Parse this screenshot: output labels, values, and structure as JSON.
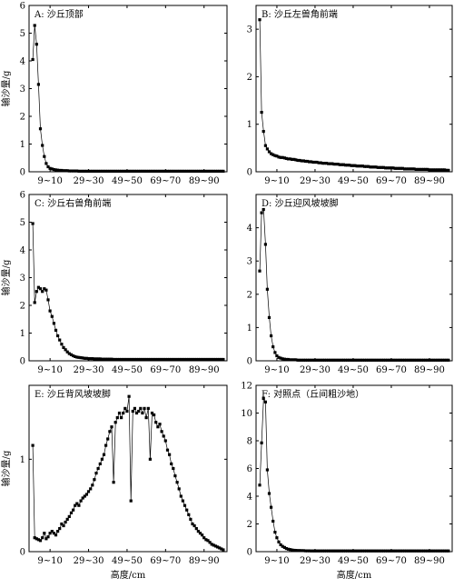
{
  "figure": {
    "ylabel": "输沙量/g",
    "xlabel": "高度/cm",
    "xticks": [
      "9~10",
      "29~30",
      "49~50",
      "69~70",
      "89~90"
    ]
  },
  "chart_data": [
    {
      "type": "line",
      "title": "A: 沙丘顶部",
      "ylim": [
        0,
        6
      ],
      "yticks": [
        0,
        1,
        2,
        3,
        4,
        5,
        6
      ],
      "values": [
        4.05,
        5.28,
        4.6,
        3.15,
        1.55,
        0.95,
        0.55,
        0.3,
        0.18,
        0.12,
        0.1,
        0.08,
        0.07,
        0.06,
        0.05,
        0.05,
        0.04,
        0.04,
        0.04,
        0.03,
        0.03,
        0.03,
        0.03,
        0.03,
        0.02,
        0.02,
        0.02,
        0.02,
        0.02,
        0.02,
        0.02,
        0.02,
        0.02,
        0.02,
        0.02,
        0.02,
        0.02,
        0.02,
        0.02,
        0.02,
        0.02,
        0.02,
        0.02,
        0.02,
        0.02,
        0.02,
        0.02,
        0.02,
        0.02,
        0.02,
        0.02,
        0.02,
        0.02,
        0.02,
        0.02,
        0.02,
        0.02,
        0.02,
        0.02,
        0.02,
        0.02,
        0.02,
        0.02,
        0.02,
        0.02,
        0.02,
        0.02,
        0.02,
        0.02,
        0.02,
        0.02,
        0.02,
        0.02,
        0.02,
        0.02,
        0.02,
        0.02,
        0.02,
        0.02,
        0.02,
        0.02,
        0.02,
        0.02,
        0.02,
        0.02,
        0.02,
        0.02,
        0.02,
        0.02,
        0.02,
        0.02,
        0.02,
        0.02,
        0.02,
        0.02,
        0.02,
        0.02,
        0.02,
        0.02,
        0.02
      ]
    },
    {
      "type": "line",
      "title": "B: 沙丘左兽角前端",
      "ylim": [
        0,
        3.5
      ],
      "yticks": [
        0,
        1,
        2,
        3
      ],
      "values": [
        3.2,
        1.25,
        0.85,
        0.55,
        0.48,
        0.42,
        0.38,
        0.36,
        0.34,
        0.33,
        0.31,
        0.3,
        0.3,
        0.29,
        0.28,
        0.27,
        0.27,
        0.26,
        0.26,
        0.25,
        0.24,
        0.24,
        0.23,
        0.23,
        0.22,
        0.22,
        0.21,
        0.21,
        0.2,
        0.2,
        0.2,
        0.19,
        0.19,
        0.18,
        0.18,
        0.18,
        0.17,
        0.17,
        0.17,
        0.16,
        0.16,
        0.16,
        0.15,
        0.15,
        0.15,
        0.14,
        0.14,
        0.14,
        0.13,
        0.13,
        0.13,
        0.12,
        0.12,
        0.12,
        0.12,
        0.11,
        0.11,
        0.11,
        0.1,
        0.1,
        0.1,
        0.1,
        0.09,
        0.09,
        0.09,
        0.09,
        0.08,
        0.08,
        0.08,
        0.08,
        0.08,
        0.07,
        0.07,
        0.07,
        0.07,
        0.07,
        0.06,
        0.06,
        0.06,
        0.06,
        0.06,
        0.06,
        0.05,
        0.05,
        0.05,
        0.05,
        0.05,
        0.05,
        0.05,
        0.04,
        0.04,
        0.04,
        0.04,
        0.04,
        0.04,
        0.04,
        0.04,
        0.04,
        0.03,
        0.03
      ]
    },
    {
      "type": "line",
      "title": "C: 沙丘右兽角前端",
      "ylim": [
        0,
        6
      ],
      "yticks": [
        0,
        1,
        2,
        3,
        4,
        5,
        6
      ],
      "values": [
        4.95,
        2.1,
        2.5,
        2.65,
        2.6,
        2.5,
        2.6,
        2.55,
        2.2,
        1.8,
        1.6,
        1.35,
        1.1,
        0.9,
        0.75,
        0.6,
        0.48,
        0.4,
        0.32,
        0.26,
        0.22,
        0.18,
        0.15,
        0.13,
        0.12,
        0.11,
        0.1,
        0.09,
        0.09,
        0.08,
        0.08,
        0.08,
        0.07,
        0.07,
        0.07,
        0.07,
        0.06,
        0.06,
        0.06,
        0.06,
        0.06,
        0.06,
        0.05,
        0.05,
        0.05,
        0.05,
        0.05,
        0.05,
        0.05,
        0.05,
        0.05,
        0.05,
        0.05,
        0.05,
        0.05,
        0.05,
        0.05,
        0.05,
        0.05,
        0.05,
        0.05,
        0.05,
        0.05,
        0.05,
        0.05,
        0.05,
        0.05,
        0.05,
        0.05,
        0.05,
        0.05,
        0.05,
        0.05,
        0.05,
        0.05,
        0.05,
        0.05,
        0.05,
        0.05,
        0.05,
        0.05,
        0.05,
        0.05,
        0.05,
        0.05,
        0.05,
        0.05,
        0.05,
        0.05,
        0.05,
        0.05,
        0.05,
        0.05,
        0.05,
        0.05,
        0.05,
        0.05,
        0.05,
        0.05,
        0.05
      ]
    },
    {
      "type": "line",
      "title": "D: 沙丘迎风坡坡脚",
      "ylim": [
        0,
        5
      ],
      "yticks": [
        0,
        1,
        2,
        3,
        4
      ],
      "values": [
        2.7,
        4.45,
        4.55,
        3.5,
        2.15,
        1.3,
        0.75,
        0.42,
        0.25,
        0.15,
        0.1,
        0.08,
        0.06,
        0.05,
        0.04,
        0.04,
        0.03,
        0.03,
        0.03,
        0.03,
        0.02,
        0.02,
        0.02,
        0.02,
        0.02,
        0.02,
        0.02,
        0.02,
        0.02,
        0.02,
        0.02,
        0.02,
        0.02,
        0.02,
        0.02,
        0.02,
        0.02,
        0.02,
        0.02,
        0.02,
        0.02,
        0.02,
        0.02,
        0.02,
        0.02,
        0.02,
        0.02,
        0.02,
        0.02,
        0.02,
        0.02,
        0.02,
        0.02,
        0.02,
        0.02,
        0.02,
        0.02,
        0.02,
        0.02,
        0.02,
        0.02,
        0.02,
        0.02,
        0.02,
        0.02,
        0.02,
        0.02,
        0.02,
        0.02,
        0.02,
        0.02,
        0.02,
        0.02,
        0.02,
        0.02,
        0.02,
        0.02,
        0.02,
        0.02,
        0.02,
        0.02,
        0.02,
        0.02,
        0.02,
        0.02,
        0.02,
        0.02,
        0.02,
        0.02,
        0.02,
        0.02,
        0.02,
        0.02,
        0.02,
        0.02,
        0.02,
        0.02,
        0.02,
        0.02,
        0.02
      ]
    },
    {
      "type": "line",
      "title": "E: 沙丘背风坡坡脚",
      "ylim": [
        0,
        1.8
      ],
      "yticks": [
        0,
        1
      ],
      "values": [
        1.15,
        0.15,
        0.14,
        0.13,
        0.12,
        0.15,
        0.2,
        0.14,
        0.16,
        0.2,
        0.22,
        0.2,
        0.18,
        0.22,
        0.25,
        0.3,
        0.28,
        0.32,
        0.35,
        0.38,
        0.42,
        0.45,
        0.5,
        0.52,
        0.5,
        0.55,
        0.58,
        0.6,
        0.62,
        0.65,
        0.68,
        0.72,
        0.78,
        0.85,
        0.9,
        0.95,
        1.0,
        1.05,
        1.15,
        1.22,
        1.3,
        1.35,
        0.75,
        1.4,
        1.45,
        1.5,
        1.45,
        1.5,
        1.55,
        1.52,
        1.68,
        0.55,
        1.52,
        1.55,
        1.5,
        1.52,
        1.55,
        1.5,
        1.55,
        1.45,
        1.55,
        1.0,
        1.5,
        1.48,
        1.4,
        1.35,
        1.38,
        1.3,
        1.25,
        1.2,
        1.1,
        1.05,
        0.95,
        0.9,
        0.82,
        0.75,
        0.68,
        0.6,
        0.55,
        0.5,
        0.45,
        0.4,
        0.35,
        0.3,
        0.28,
        0.25,
        0.22,
        0.2,
        0.18,
        0.15,
        0.13,
        0.12,
        0.1,
        0.08,
        0.07,
        0.06,
        0.05,
        0.04,
        0.03,
        0.02
      ]
    },
    {
      "type": "line",
      "title": "F: 对照点（丘间粗沙地）",
      "ylim": [
        0,
        12
      ],
      "yticks": [
        0,
        2,
        4,
        6,
        8,
        10,
        12
      ],
      "values": [
        4.8,
        7.85,
        11.05,
        10.8,
        5.9,
        4.2,
        3.2,
        2.2,
        1.4,
        1.0,
        0.7,
        0.5,
        0.38,
        0.3,
        0.22,
        0.18,
        0.15,
        0.12,
        0.1,
        0.09,
        0.08,
        0.08,
        0.07,
        0.07,
        0.06,
        0.06,
        0.06,
        0.05,
        0.05,
        0.05,
        0.05,
        0.05,
        0.05,
        0.05,
        0.05,
        0.05,
        0.05,
        0.05,
        0.05,
        0.05,
        0.05,
        0.05,
        0.05,
        0.05,
        0.05,
        0.05,
        0.05,
        0.05,
        0.05,
        0.05,
        0.05,
        0.05,
        0.05,
        0.05,
        0.05,
        0.05,
        0.05,
        0.05,
        0.05,
        0.05,
        0.05,
        0.05,
        0.05,
        0.05,
        0.05,
        0.05,
        0.05,
        0.05,
        0.05,
        0.05,
        0.05,
        0.05,
        0.05,
        0.05,
        0.05,
        0.05,
        0.05,
        0.05,
        0.05,
        0.05,
        0.05,
        0.05,
        0.05,
        0.05,
        0.05,
        0.05,
        0.05,
        0.05,
        0.05,
        0.05,
        0.05,
        0.05,
        0.05,
        0.05,
        0.05,
        0.05,
        0.05,
        0.05,
        0.05,
        0.05
      ]
    }
  ]
}
